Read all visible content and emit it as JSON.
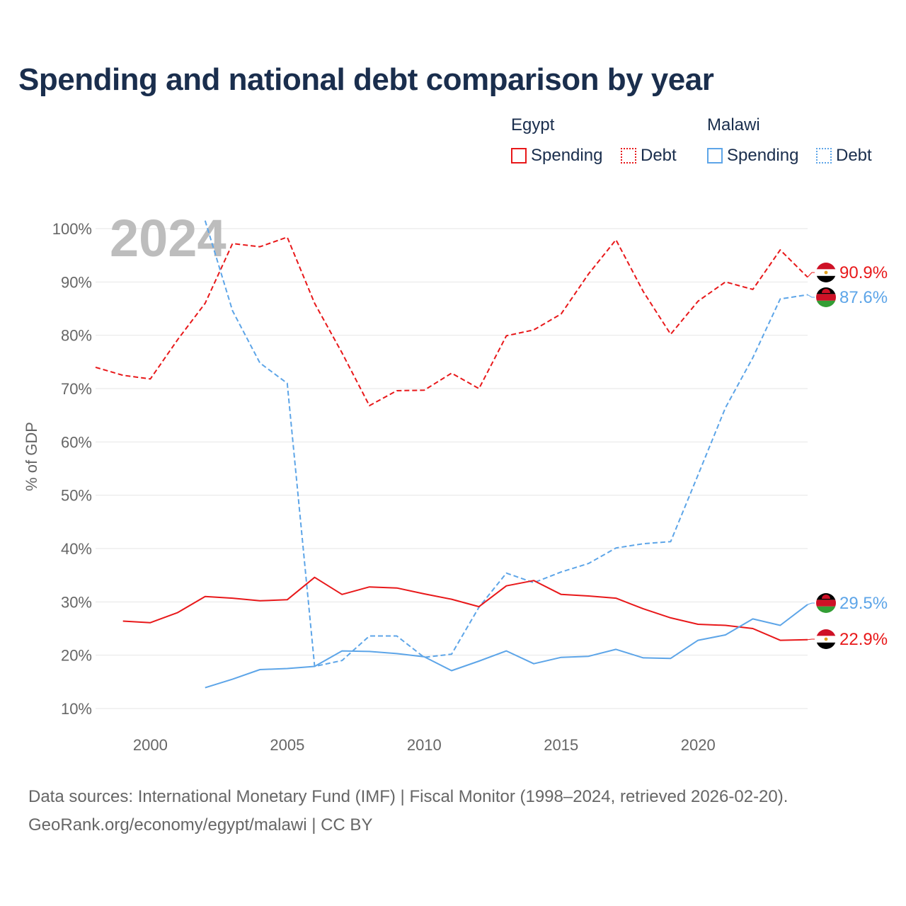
{
  "title": "Spending and national debt comparison by year",
  "legend": {
    "egypt": {
      "name": "Egypt",
      "spending": "Spending",
      "debt": "Debt"
    },
    "malawi": {
      "name": "Malawi",
      "spending": "Spending",
      "debt": "Debt"
    }
  },
  "colors": {
    "egypt": "#e8181a",
    "malawi": "#5da5e8",
    "grid": "#e6e6e6",
    "axis_text": "#666666",
    "year_watermark": "#bdbdbd"
  },
  "footer": {
    "line1": "Data sources: International Monetary Fund (IMF) | Fiscal Monitor (1998–2024, retrieved 2026-02-20).",
    "line2": "GeoRank.org/economy/egypt/malawi | CC BY"
  },
  "chart_data": {
    "type": "line",
    "year_label": "2024",
    "ylabel": "% of GDP",
    "xlim": [
      1998,
      2024
    ],
    "ylim": [
      10,
      100
    ],
    "y_ticks": [
      {
        "value": 100,
        "label": "100%"
      },
      {
        "value": 90,
        "label": "90%"
      },
      {
        "value": 80,
        "label": "80%"
      },
      {
        "value": 70,
        "label": "70%"
      },
      {
        "value": 60,
        "label": "60%"
      },
      {
        "value": 50,
        "label": "50%"
      },
      {
        "value": 40,
        "label": "40%"
      },
      {
        "value": 30,
        "label": "30%"
      },
      {
        "value": 20,
        "label": "20%"
      },
      {
        "value": 10,
        "label": "10%"
      }
    ],
    "x_ticks": [
      {
        "value": 2000,
        "label": "2000"
      },
      {
        "value": 2005,
        "label": "2005"
      },
      {
        "value": 2010,
        "label": "2010"
      },
      {
        "value": 2015,
        "label": "2015"
      },
      {
        "value": 2020,
        "label": "2020"
      }
    ],
    "series": [
      {
        "name": "Egypt Debt",
        "country": "egypt",
        "dashed": true,
        "end_label": "90.9%",
        "x": [
          1998,
          1999,
          2000,
          2001,
          2002,
          2003,
          2004,
          2005,
          2006,
          2007,
          2008,
          2009,
          2010,
          2011,
          2012,
          2013,
          2014,
          2015,
          2016,
          2017,
          2018,
          2019,
          2020,
          2021,
          2022,
          2023,
          2024
        ],
        "values": [
          74.0,
          72.5,
          71.8,
          79.2,
          86.0,
          97.2,
          96.6,
          98.4,
          86.0,
          76.7,
          66.8,
          69.6,
          69.7,
          72.9,
          70.0,
          79.9,
          81.0,
          84.0,
          91.5,
          97.9,
          88.2,
          80.2,
          86.4,
          90.0,
          88.6,
          96.0,
          90.9
        ]
      },
      {
        "name": "Malawi Debt",
        "country": "malawi",
        "dashed": true,
        "end_label": "87.6%",
        "x": [
          2002,
          2003,
          2004,
          2005,
          2006,
          2007,
          2008,
          2009,
          2010,
          2011,
          2012,
          2013,
          2014,
          2015,
          2016,
          2017,
          2018,
          2019,
          2020,
          2021,
          2022,
          2023,
          2024
        ],
        "values": [
          101.5,
          84.6,
          74.8,
          71.0,
          17.9,
          19.0,
          23.6,
          23.6,
          19.6,
          20.2,
          29.0,
          35.4,
          33.6,
          35.6,
          37.2,
          40.1,
          40.9,
          41.3,
          53.8,
          66.4,
          75.8,
          86.8,
          87.6
        ]
      },
      {
        "name": "Egypt Spending",
        "country": "egypt",
        "dashed": false,
        "end_label": "22.9%",
        "x": [
          1999,
          2000,
          2001,
          2002,
          2003,
          2004,
          2005,
          2006,
          2007,
          2008,
          2009,
          2010,
          2011,
          2012,
          2013,
          2014,
          2015,
          2016,
          2017,
          2018,
          2019,
          2020,
          2021,
          2022,
          2023,
          2024
        ],
        "values": [
          26.4,
          26.1,
          28.0,
          31.0,
          30.7,
          30.2,
          30.4,
          34.6,
          31.4,
          32.8,
          32.6,
          31.5,
          30.5,
          29.1,
          33.0,
          34.0,
          31.4,
          31.1,
          30.7,
          28.7,
          27.0,
          25.8,
          25.6,
          25.0,
          22.8,
          22.9
        ]
      },
      {
        "name": "Malawi Spending",
        "country": "malawi",
        "dashed": false,
        "end_label": "29.5%",
        "x": [
          2002,
          2003,
          2004,
          2005,
          2006,
          2007,
          2008,
          2009,
          2010,
          2011,
          2012,
          2013,
          2014,
          2015,
          2016,
          2017,
          2018,
          2019,
          2020,
          2021,
          2022,
          2023,
          2024
        ],
        "values": [
          13.9,
          15.5,
          17.3,
          17.5,
          17.9,
          20.8,
          20.7,
          20.3,
          19.7,
          17.1,
          18.9,
          20.8,
          18.4,
          19.6,
          19.8,
          21.1,
          19.5,
          19.4,
          22.8,
          23.8,
          26.8,
          25.6,
          29.5
        ]
      }
    ]
  }
}
